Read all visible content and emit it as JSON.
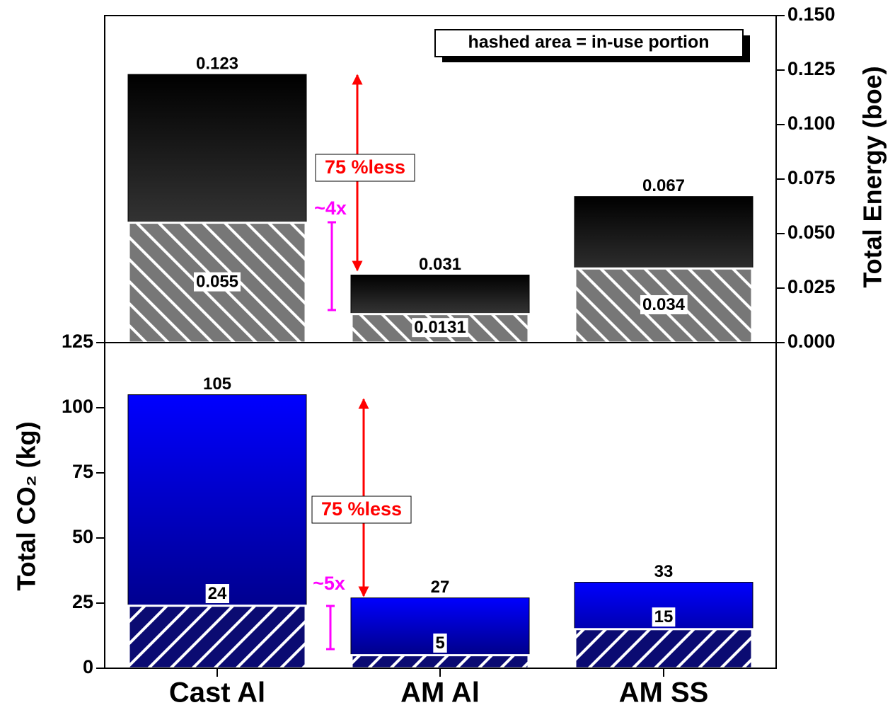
{
  "chart_data": [
    {
      "type": "bar",
      "axis_side": "right",
      "y_label": "Total Energy (boe)",
      "legend": "hashed area = in-use portion",
      "annotations": [
        "75 %less",
        "~4x"
      ],
      "series": [
        {
          "color": "#000000",
          "gradient_to": "#5c5c5c",
          "values": [
            0.123,
            0.031,
            0.067
          ]
        },
        {
          "color": "#777777",
          "hatch": "backslash",
          "values": [
            0.055,
            0.0131,
            0.034
          ]
        }
      ],
      "ylim": [
        0,
        0.15
      ],
      "yticks": [
        {
          "value": 0,
          "label": "0.000"
        },
        0.025,
        {
          "value": 0.05,
          "label": "0.050"
        },
        0.075,
        {
          "value": 0.1,
          "label": "0.100"
        },
        0.125,
        {
          "value": 0.15,
          "label": "0.150"
        }
      ]
    },
    {
      "type": "bar",
      "axis_side": "left",
      "y_label": "Total CO₂ (kg)",
      "annotations": [
        "75 %less",
        "~5x"
      ],
      "categories": [
        "Cast Al",
        "AM Al",
        "AM SS"
      ],
      "series": [
        {
          "color": "#0000ff",
          "gradient_to": "#00006e",
          "values": [
            105,
            27,
            33
          ]
        },
        {
          "color": "#0b0b72",
          "hatch": "slash",
          "values": [
            24,
            5,
            15
          ]
        }
      ],
      "ylim": [
        0,
        125
      ],
      "yticks": [
        0,
        25,
        50,
        75,
        100,
        125
      ]
    }
  ]
}
